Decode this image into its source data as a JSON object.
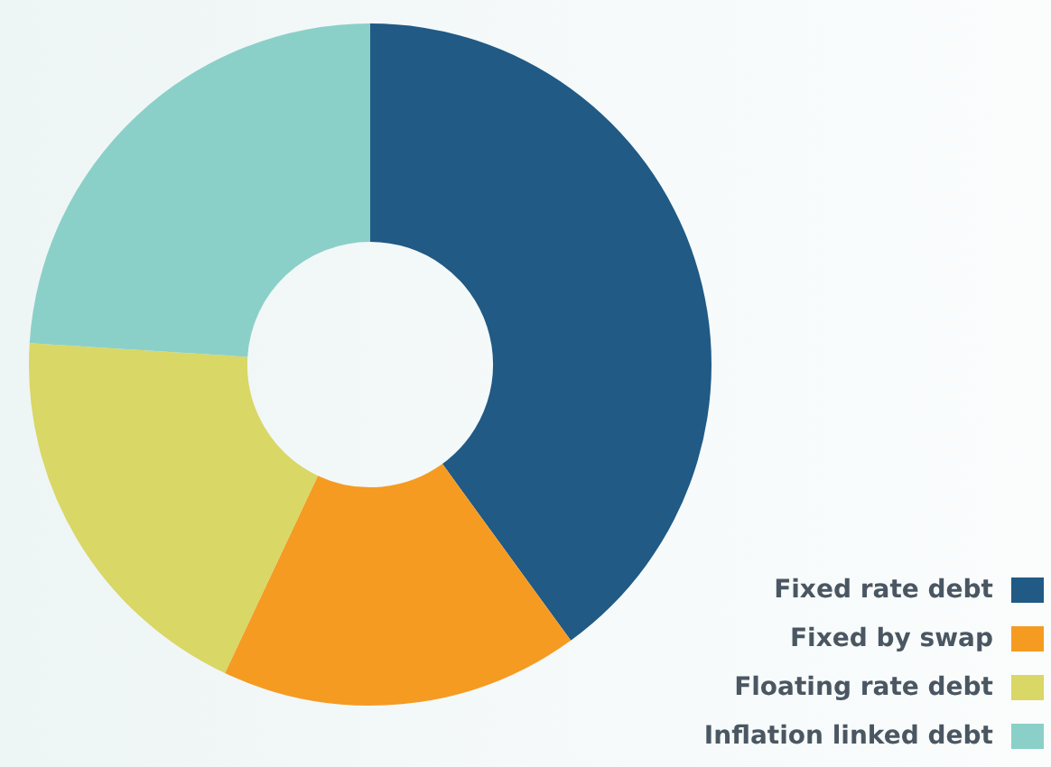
{
  "chart_data": {
    "type": "donut",
    "categories": [
      "Fixed rate debt",
      "Fixed by swap",
      "Floating rate debt",
      "Inflation linked debt"
    ],
    "values": [
      40,
      17,
      19,
      24
    ],
    "colors": [
      "#205a85",
      "#f59b22",
      "#d9d765",
      "#8ad0c8"
    ],
    "legend": "bottom right"
  }
}
